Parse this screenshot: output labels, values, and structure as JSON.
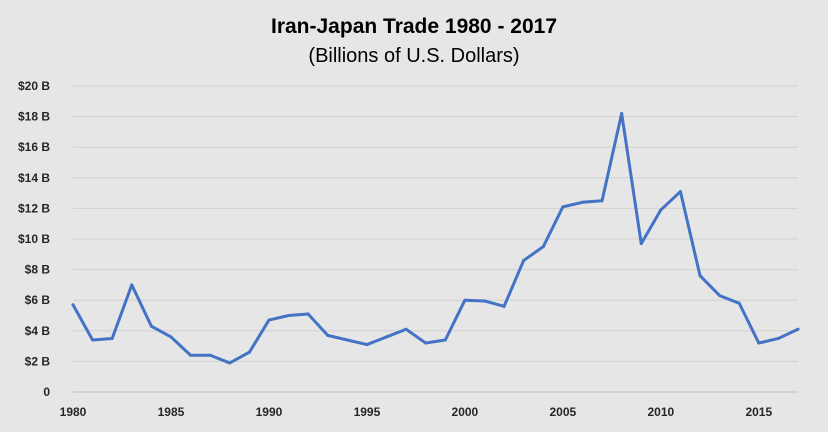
{
  "chart_data": {
    "type": "line",
    "title": "Iran-Japan Trade 1980 - 2017",
    "subtitle": "(Billions of U.S. Dollars)",
    "xlabel": "",
    "ylabel": "",
    "x": [
      1980,
      1981,
      1982,
      1983,
      1984,
      1985,
      1986,
      1987,
      1988,
      1989,
      1990,
      1991,
      1992,
      1993,
      1994,
      1995,
      1996,
      1997,
      1998,
      1999,
      2000,
      2001,
      2002,
      2003,
      2004,
      2005,
      2006,
      2007,
      2008,
      2009,
      2010,
      2011,
      2012,
      2013,
      2014,
      2015,
      2016,
      2017
    ],
    "series": [
      {
        "color": "#4472c4",
        "values": [
          5.7,
          3.4,
          3.5,
          7.0,
          4.3,
          3.6,
          2.4,
          2.4,
          1.9,
          2.6,
          4.7,
          5.0,
          5.1,
          3.7,
          3.4,
          3.1,
          3.6,
          4.1,
          3.2,
          3.4,
          6.0,
          5.95,
          5.6,
          8.6,
          9.5,
          12.1,
          12.4,
          12.5,
          18.2,
          9.7,
          11.9,
          13.1,
          7.6,
          6.3,
          5.8,
          3.2,
          3.5,
          4.1
        ]
      }
    ],
    "xlim": [
      1980,
      2017
    ],
    "ylim": [
      0,
      20
    ],
    "x_ticks": [
      1980,
      1985,
      1990,
      1995,
      2000,
      2005,
      2010,
      2015
    ],
    "x_tick_labels": [
      "1980",
      "1985",
      "1990",
      "1995",
      "2000",
      "2005",
      "2010",
      "2015"
    ],
    "y_ticks": [
      0,
      2,
      4,
      6,
      8,
      10,
      12,
      14,
      16,
      18,
      20
    ],
    "y_tick_labels": [
      "0",
      "$2 B",
      "$4 B",
      "$6 B",
      "$8 B",
      "$10 B",
      "$12 B",
      "$14 B",
      "$16 B",
      "$18 B",
      "$20 B"
    ],
    "grid": true,
    "legend": "none",
    "colors": {
      "background": "#e6e6e6",
      "grid": "#d0d0d0",
      "line": "#4472c4"
    }
  }
}
